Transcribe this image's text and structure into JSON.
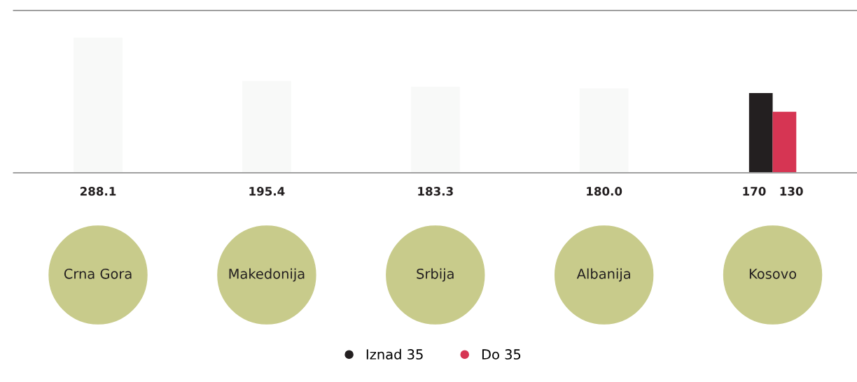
{
  "chart_data": {
    "type": "bar",
    "categories": [
      "Crna Gora",
      "Makedonija",
      "Srbija",
      "Albanija",
      "Kosovo"
    ],
    "series": [
      {
        "color": "#f8f9f8",
        "values": [
          288.1,
          195.4,
          183.3,
          180.0,
          null
        ],
        "value_labels": [
          "288.1",
          "195.4",
          "183.3",
          "180.0",
          null
        ]
      },
      {
        "name": "Iznad 35",
        "color": "#231f20",
        "values": [
          null,
          null,
          null,
          null,
          170
        ],
        "value_labels": [
          null,
          null,
          null,
          null,
          "170"
        ]
      },
      {
        "name": "Do 35",
        "color": "#d63553",
        "values": [
          null,
          null,
          null,
          null,
          130
        ],
        "value_labels": [
          null,
          null,
          null,
          null,
          "130"
        ]
      }
    ],
    "legend": "bottom"
  }
}
